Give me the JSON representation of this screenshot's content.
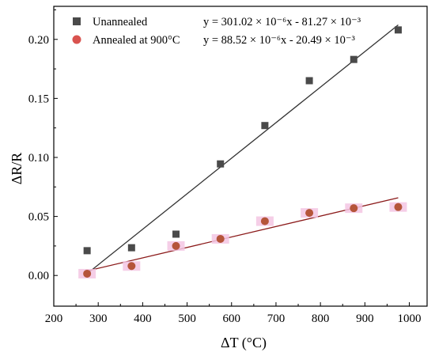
{
  "chart_data": {
    "type": "scatter",
    "xlabel": "ΔT (°C)",
    "ylabel": "ΔR/R",
    "xlim": [
      200,
      1040
    ],
    "ylim": [
      -0.026,
      0.228
    ],
    "xticks": [
      "200",
      "300",
      "400",
      "500",
      "600",
      "700",
      "800",
      "900",
      "1000"
    ],
    "yticks": [
      "0.00",
      "0.05",
      "0.10",
      "0.15",
      "0.20"
    ],
    "xtick_values": [
      200,
      300,
      400,
      500,
      600,
      700,
      800,
      900,
      1000
    ],
    "ytick_values": [
      0.0,
      0.05,
      0.1,
      0.15,
      0.2
    ],
    "grid": false,
    "legend_position": "top-left",
    "series": [
      {
        "name": "Unannealed",
        "marker": "square",
        "color": "#4a4a4a",
        "fit_color": "#333333",
        "fit_label": "y = 301.02 × 10⁻⁶x - 81.27 × 10⁻³",
        "fit": {
          "slope": 0.00030102,
          "intercept": -0.08127,
          "x_range": [
            275,
            975
          ]
        },
        "x": [
          275,
          375,
          475,
          575,
          675,
          775,
          875,
          975
        ],
        "y": [
          0.021,
          0.0235,
          0.035,
          0.0945,
          0.127,
          0.165,
          0.183,
          0.208
        ]
      },
      {
        "name": "Annealed at 900°C",
        "marker": "circle",
        "color": "#b5553a",
        "highlight": "#f3c6e3",
        "fit_color": "#8b1a1a",
        "fit_label": "y = 88.52 × 10⁻⁶x - 20.49 × 10⁻³",
        "fit": {
          "slope": 8.852e-05,
          "intercept": -0.02049,
          "x_range": [
            275,
            975
          ]
        },
        "x": [
          275,
          375,
          475,
          575,
          675,
          775,
          875,
          975
        ],
        "y": [
          0.0015,
          0.008,
          0.025,
          0.031,
          0.046,
          0.053,
          0.057,
          0.058
        ]
      }
    ]
  }
}
